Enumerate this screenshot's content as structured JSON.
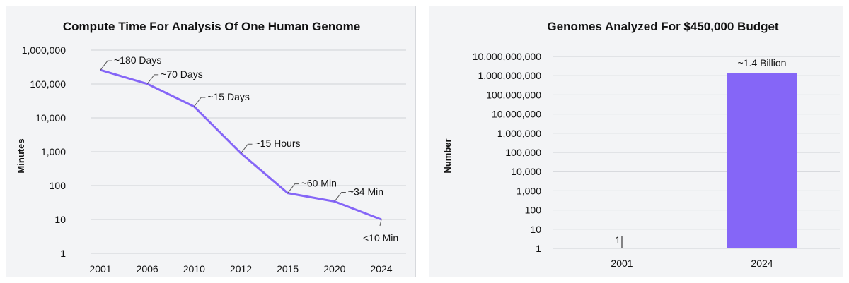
{
  "chart_data": [
    {
      "type": "line",
      "title": "Compute Time For Analysis Of One Human Genome",
      "xlabel": "",
      "ylabel": "Minutes",
      "yscale": "log",
      "ylim": [
        1,
        1000000
      ],
      "yticks": [
        "1",
        "10",
        "100",
        "1,000",
        "10,000",
        "100,000",
        "1,000,000"
      ],
      "grid": true,
      "color": "#8566f7",
      "categories": [
        "2001",
        "2006",
        "2010",
        "2012",
        "2015",
        "2020",
        "2024"
      ],
      "values": [
        259200,
        100800,
        21600,
        900,
        60,
        34,
        10
      ],
      "labels": [
        "~180 Days",
        "~70 Days",
        "~15 Days",
        "~15 Hours",
        "~60 Min",
        "~34 Min",
        "<10 Min"
      ]
    },
    {
      "type": "bar",
      "title": "Genomes Analyzed For $450,000 Budget",
      "xlabel": "",
      "ylabel": "Number",
      "yscale": "log",
      "ylim": [
        1,
        10000000000
      ],
      "yticks": [
        "1",
        "10",
        "100",
        "1,000",
        "10,000",
        "100,000",
        "1,000,000",
        "10,000,000",
        "100,000,000",
        "1,000,000,000",
        "10,000,000,000"
      ],
      "grid": true,
      "color": "#8566f7",
      "categories": [
        "2001",
        "2024"
      ],
      "values": [
        1,
        1400000000
      ],
      "labels": [
        "1",
        "~1.4 Billion"
      ]
    }
  ]
}
